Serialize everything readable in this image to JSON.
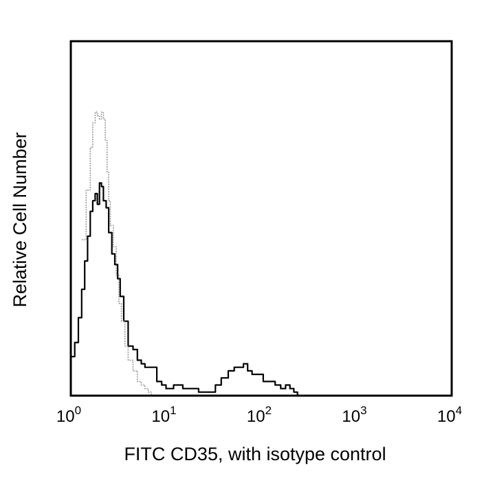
{
  "chart_data": {
    "type": "line",
    "title": "",
    "xlabel": "FITC CD35, with isotype control",
    "ylabel": "Relative Cell Number",
    "x_scale": "log10",
    "xlim": [
      1,
      10000
    ],
    "ylim": [
      0,
      100
    ],
    "x_ticks": [
      {
        "base": "10",
        "exp": "0",
        "value": 1
      },
      {
        "base": "10",
        "exp": "1",
        "value": 10
      },
      {
        "base": "10",
        "exp": "2",
        "value": 100
      },
      {
        "base": "10",
        "exp": "3",
        "value": 1000
      },
      {
        "base": "10",
        "exp": "4",
        "value": 10000
      }
    ],
    "grid": false,
    "legend": "none",
    "series": [
      {
        "color": "#000000",
        "style": "solid",
        "points": [
          [
            1.0,
            11
          ],
          [
            1.1,
            15
          ],
          [
            1.2,
            22
          ],
          [
            1.3,
            30
          ],
          [
            1.4,
            38
          ],
          [
            1.5,
            45
          ],
          [
            1.6,
            52
          ],
          [
            1.7,
            55
          ],
          [
            1.8,
            57
          ],
          [
            1.9,
            54
          ],
          [
            2.0,
            60
          ],
          [
            2.1,
            59
          ],
          [
            2.2,
            55
          ],
          [
            2.35,
            53
          ],
          [
            2.5,
            46
          ],
          [
            2.7,
            40
          ],
          [
            2.9,
            37
          ],
          [
            3.1,
            33
          ],
          [
            3.3,
            28
          ],
          [
            3.6,
            21
          ],
          [
            4.0,
            14
          ],
          [
            4.5,
            13
          ],
          [
            5.0,
            10
          ],
          [
            5.5,
            9
          ],
          [
            6.0,
            8
          ],
          [
            7.0,
            8
          ],
          [
            8.0,
            4
          ],
          [
            9.0,
            3
          ],
          [
            10.0,
            2
          ],
          [
            12.0,
            3
          ],
          [
            15.0,
            2
          ],
          [
            18.0,
            2
          ],
          [
            22.0,
            1
          ],
          [
            26.0,
            1
          ],
          [
            30.0,
            1
          ],
          [
            33.0,
            3
          ],
          [
            38.0,
            5
          ],
          [
            45.0,
            7
          ],
          [
            52.0,
            8
          ],
          [
            58.0,
            8
          ],
          [
            65.0,
            9
          ],
          [
            72.0,
            7
          ],
          [
            80.0,
            6
          ],
          [
            90.0,
            6
          ],
          [
            105.0,
            4
          ],
          [
            120.0,
            4
          ],
          [
            140.0,
            3
          ],
          [
            160.0,
            2
          ],
          [
            180.0,
            3
          ],
          [
            200.0,
            2
          ],
          [
            220.0,
            1
          ],
          [
            240.0,
            0
          ]
        ]
      },
      {
        "color": "#999999",
        "style": "dotted",
        "points": [
          [
            1.3,
            44
          ],
          [
            1.45,
            58
          ],
          [
            1.6,
            70
          ],
          [
            1.7,
            77
          ],
          [
            1.8,
            80
          ],
          [
            1.9,
            79
          ],
          [
            2.0,
            78
          ],
          [
            2.1,
            80
          ],
          [
            2.2,
            78
          ],
          [
            2.3,
            72
          ],
          [
            2.4,
            63
          ],
          [
            2.5,
            55
          ],
          [
            2.6,
            48
          ],
          [
            2.8,
            42
          ],
          [
            3.0,
            34
          ],
          [
            3.2,
            26
          ],
          [
            3.4,
            21
          ],
          [
            3.7,
            14
          ],
          [
            4.0,
            10
          ],
          [
            4.5,
            7
          ],
          [
            5.0,
            4
          ],
          [
            5.5,
            3
          ],
          [
            6.0,
            2
          ],
          [
            6.5,
            1
          ],
          [
            7.0,
            0
          ]
        ]
      }
    ]
  }
}
